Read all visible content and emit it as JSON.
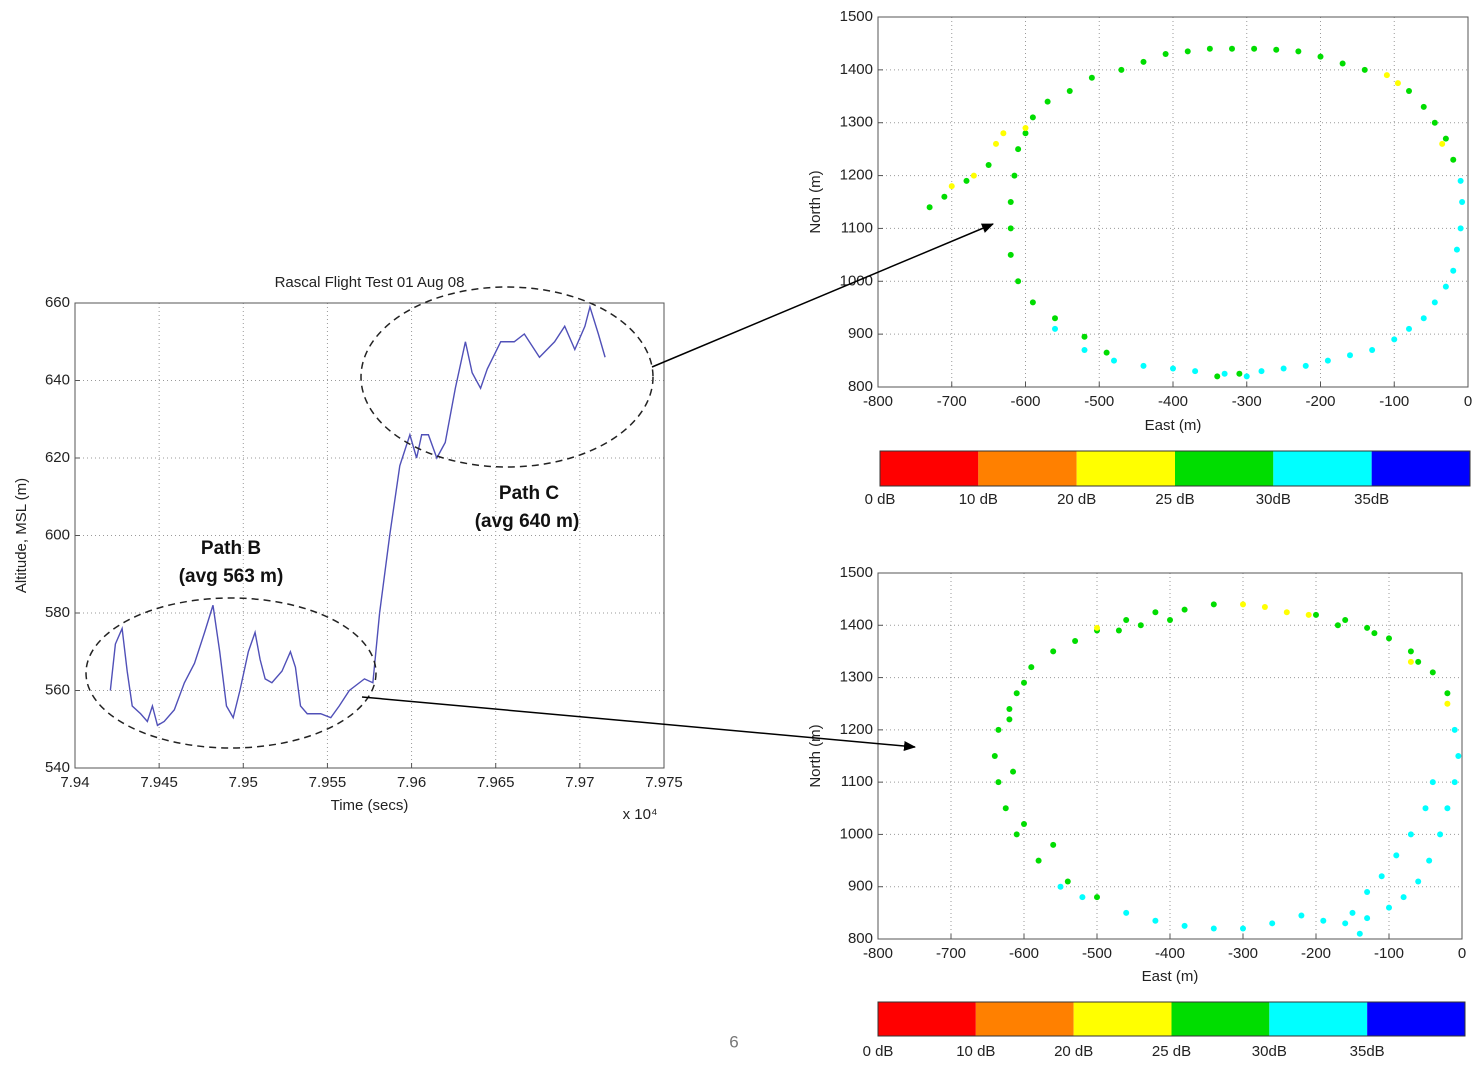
{
  "page_number": "6",
  "chart_data": [
    {
      "type": "line",
      "title": "Rascal Flight Test 01 Aug 08",
      "x_label": "Time (secs)",
      "y_label": "Altitude, MSL (m)",
      "x_multiplier": "x 10⁴",
      "color": "#5050b8",
      "grid": true,
      "xlim": [
        7.94,
        7.975
      ],
      "xticks": [
        7.94,
        7.945,
        7.95,
        7.955,
        7.96,
        7.965,
        7.97,
        7.975
      ],
      "ylim": [
        540,
        660
      ],
      "yticks": [
        540,
        560,
        580,
        600,
        620,
        640,
        660
      ],
      "annotations": [
        "Path B",
        "(avg 563 m)",
        "Path C",
        "(avg 640 m)"
      ],
      "x": [
        7.9421,
        7.9424,
        7.9428,
        7.9431,
        7.9434,
        7.9439,
        7.9443,
        7.9446,
        7.9449,
        7.9453,
        7.9459,
        7.9465,
        7.9471,
        7.9477,
        7.9482,
        7.9486,
        7.949,
        7.9494,
        7.9498,
        7.9503,
        7.9507,
        7.951,
        7.9513,
        7.9517,
        7.9523,
        7.9528,
        7.9531,
        7.9534,
        7.9538,
        7.9546,
        7.9552,
        7.9557,
        7.9563,
        7.9572,
        7.9577,
        7.9581,
        7.9587,
        7.9593,
        7.9599,
        7.9603,
        7.9606,
        7.961,
        7.9615,
        7.962,
        7.9626,
        7.9632,
        7.9636,
        7.9641,
        7.9645,
        7.9653,
        7.9661,
        7.9667,
        7.9676,
        7.9685,
        7.9691,
        7.9697,
        7.9703,
        7.9706,
        7.9711,
        7.9715
      ],
      "values": [
        560,
        572,
        576,
        565,
        556,
        554,
        552,
        556,
        551,
        552,
        555,
        562,
        567,
        575,
        582,
        570,
        556,
        553,
        560,
        570,
        575,
        568,
        563,
        562,
        565,
        570,
        566,
        556,
        554,
        554,
        553,
        556,
        560,
        563,
        562,
        580,
        600,
        618,
        626,
        620,
        626,
        626,
        620,
        624,
        638,
        650,
        642,
        638,
        643,
        650,
        650,
        652,
        646,
        650,
        654,
        648,
        654,
        659,
        652,
        646
      ]
    },
    {
      "type": "scatter",
      "x_label": "East (m)",
      "y_label": "North (m)",
      "grid": true,
      "xlim": [
        -800,
        0
      ],
      "xticks": [
        -800,
        -700,
        -600,
        -500,
        -400,
        -300,
        -200,
        -100,
        0
      ],
      "ylim": [
        800,
        1500
      ],
      "yticks": [
        800,
        900,
        1000,
        1100,
        1200,
        1300,
        1400,
        1500
      ],
      "series": [
        {
          "color": "#00dd00",
          "x": [
            -730,
            -710,
            -680,
            -650,
            -620,
            -620,
            -615,
            -610,
            -600,
            -620,
            -610,
            -590,
            -560,
            -520,
            -490,
            -340,
            -310,
            -590,
            -570,
            -540,
            -510,
            -470,
            -440,
            -410,
            -380,
            -350,
            -320,
            -290,
            -260,
            -230,
            -200,
            -170,
            -140,
            -80,
            -60,
            -45,
            -30,
            -20
          ],
          "values": [
            1140,
            1160,
            1190,
            1220,
            1100,
            1150,
            1200,
            1250,
            1280,
            1050,
            1000,
            960,
            930,
            895,
            865,
            820,
            825,
            1310,
            1340,
            1360,
            1385,
            1400,
            1415,
            1430,
            1435,
            1440,
            1440,
            1440,
            1438,
            1435,
            1425,
            1412,
            1400,
            1360,
            1330,
            1300,
            1270,
            1230
          ]
        },
        {
          "color": "#ffff00",
          "x": [
            -700,
            -670,
            -640,
            -630,
            -600,
            -110,
            -95,
            -35
          ],
          "values": [
            1180,
            1200,
            1260,
            1280,
            1290,
            1390,
            1375,
            1260
          ]
        },
        {
          "color": "#00ffff",
          "x": [
            -10,
            -8,
            -10,
            -15,
            -20,
            -30,
            -45,
            -60,
            -80,
            -100,
            -130,
            -160,
            -190,
            -220,
            -250,
            -280,
            -300,
            -330,
            -370,
            -400,
            -440,
            -480,
            -520,
            -560
          ],
          "values": [
            1190,
            1150,
            1100,
            1060,
            1020,
            990,
            960,
            930,
            910,
            890,
            870,
            860,
            850,
            840,
            835,
            830,
            820,
            825,
            830,
            835,
            840,
            850,
            870,
            910
          ]
        }
      ],
      "colorbar": {
        "colors": [
          "#ff0000",
          "#ff8000",
          "#ffff00",
          "#00dd00",
          "#00ffff",
          "#0000ff"
        ],
        "labels": [
          "0 dB",
          "10 dB",
          "20 dB",
          "25 dB",
          "30dB",
          "35dB"
        ]
      }
    },
    {
      "type": "scatter",
      "x_label": "East (m)",
      "y_label": "North (m)",
      "grid": true,
      "xlim": [
        -800,
        0
      ],
      "xticks": [
        -800,
        -700,
        -600,
        -500,
        -400,
        -300,
        -200,
        -100,
        0
      ],
      "ylim": [
        800,
        1500
      ],
      "yticks": [
        800,
        900,
        1000,
        1100,
        1200,
        1300,
        1400,
        1500
      ],
      "series": [
        {
          "color": "#00dd00",
          "x": [
            -600,
            -620,
            -635,
            -640,
            -635,
            -625,
            -610,
            -580,
            -540,
            -500,
            -590,
            -560,
            -530,
            -500,
            -460,
            -420,
            -380,
            -340,
            -200,
            -160,
            -130,
            -100,
            -70,
            -40,
            -20,
            -610,
            -620,
            -615,
            -600,
            -560,
            -470,
            -440,
            -400,
            -170,
            -120,
            -60
          ],
          "values": [
            1290,
            1240,
            1200,
            1150,
            1100,
            1050,
            1000,
            950,
            910,
            880,
            1320,
            1350,
            1370,
            1390,
            1410,
            1425,
            1430,
            1440,
            1420,
            1410,
            1395,
            1375,
            1350,
            1310,
            1270,
            1270,
            1220,
            1120,
            1020,
            980,
            1390,
            1400,
            1410,
            1400,
            1385,
            1330
          ]
        },
        {
          "color": "#ffff00",
          "x": [
            -500,
            -300,
            -270,
            -240,
            -210,
            -70,
            -20
          ],
          "values": [
            1395,
            1440,
            1435,
            1425,
            1420,
            1330,
            1250
          ]
        },
        {
          "color": "#00ffff",
          "x": [
            -10,
            -5,
            -10,
            -20,
            -30,
            -45,
            -60,
            -80,
            -100,
            -130,
            -160,
            -190,
            -220,
            -260,
            -300,
            -340,
            -380,
            -420,
            -460,
            -40,
            -50,
            -70,
            -90,
            -110,
            -130,
            -150,
            -140,
            -520,
            -550
          ],
          "values": [
            1200,
            1150,
            1100,
            1050,
            1000,
            950,
            910,
            880,
            860,
            840,
            830,
            835,
            845,
            830,
            820,
            820,
            825,
            835,
            850,
            1100,
            1050,
            1000,
            960,
            920,
            890,
            850,
            810,
            880,
            900
          ]
        }
      ],
      "colorbar": {
        "colors": [
          "#ff0000",
          "#ff8000",
          "#ffff00",
          "#00dd00",
          "#00ffff",
          "#0000ff"
        ],
        "labels": [
          "0 dB",
          "10 dB",
          "20 dB",
          "25 dB",
          "30dB",
          "35dB"
        ]
      }
    }
  ]
}
